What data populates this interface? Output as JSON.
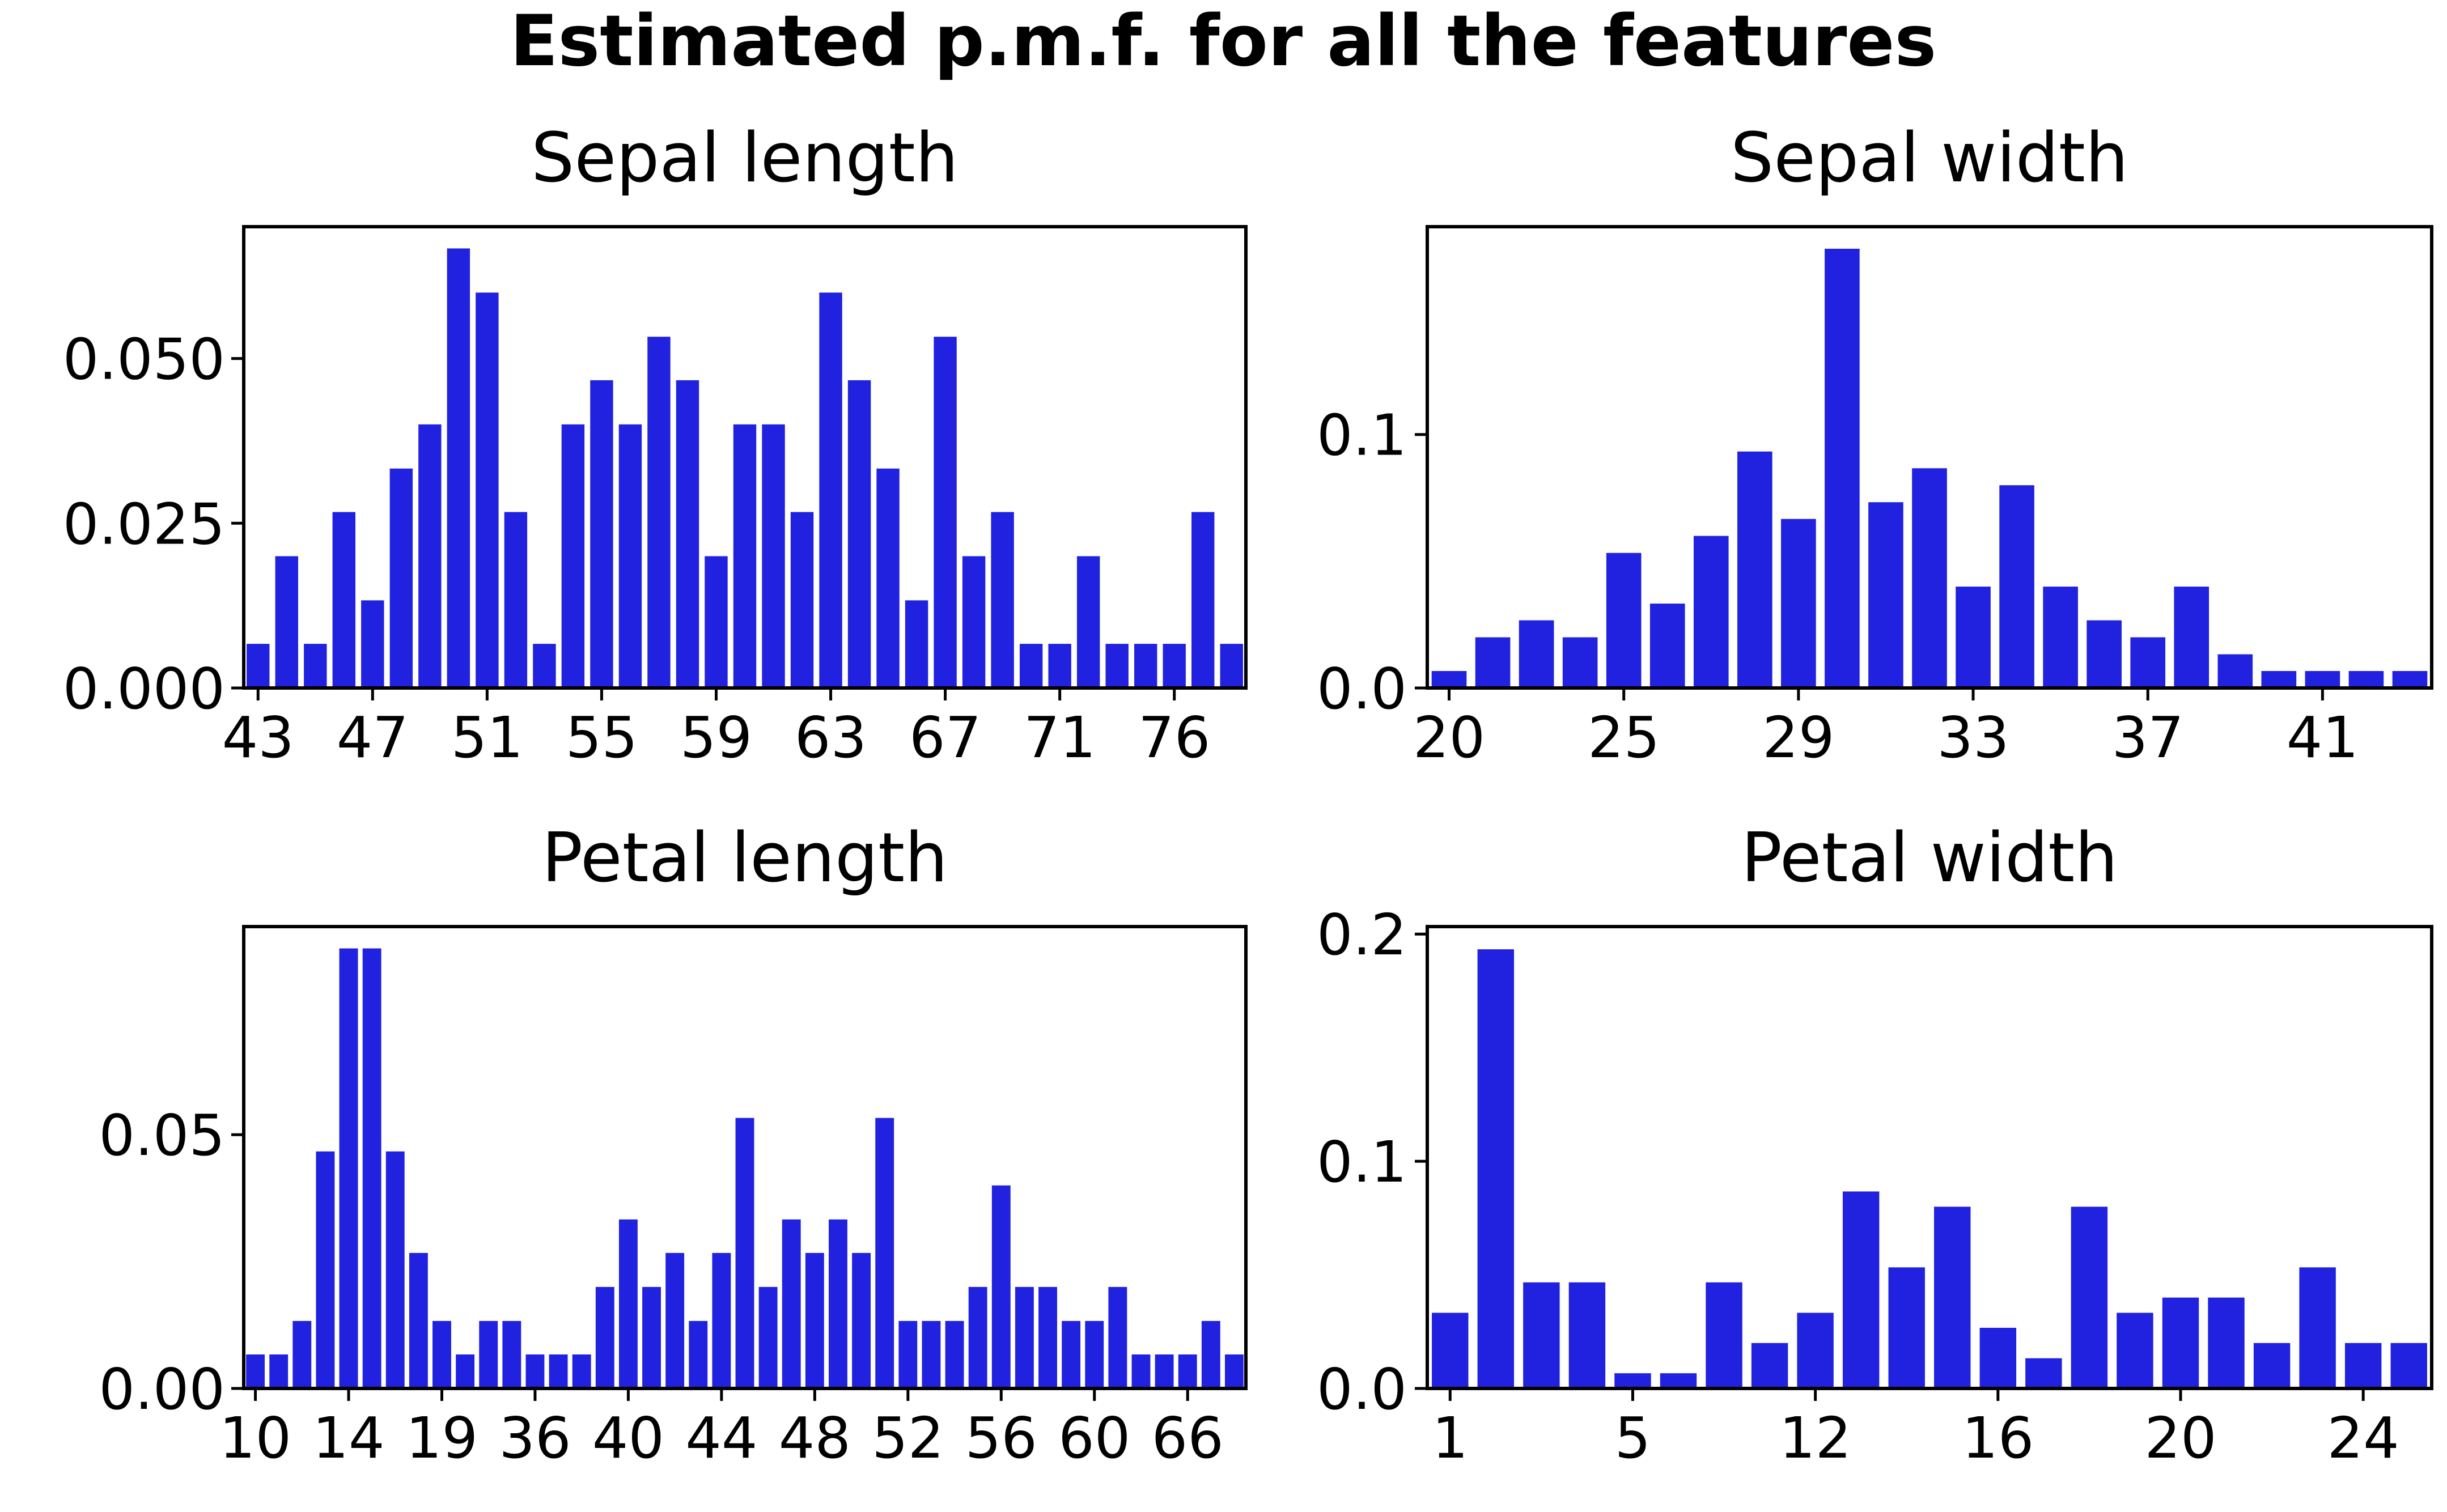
{
  "suptitle": "Estimated p.m.f. for all the features",
  "bar_color": "#2121e0",
  "chart_data": [
    {
      "type": "bar",
      "title": "Sepal length",
      "xlabel": "",
      "ylabel": "",
      "categories": [
        "43",
        "44",
        "45",
        "46",
        "47",
        "48",
        "49",
        "50",
        "51",
        "52",
        "53",
        "54",
        "55",
        "56",
        "57",
        "58",
        "59",
        "60",
        "61",
        "62",
        "63",
        "64",
        "65",
        "66",
        "67",
        "68",
        "69",
        "70",
        "71",
        "72",
        "73",
        "74",
        "76",
        "77",
        "79"
      ],
      "values": [
        0.0067,
        0.02,
        0.0067,
        0.0267,
        0.0133,
        0.0333,
        0.04,
        0.0667,
        0.06,
        0.0267,
        0.0067,
        0.04,
        0.0467,
        0.04,
        0.0533,
        0.0467,
        0.02,
        0.04,
        0.04,
        0.0267,
        0.06,
        0.0467,
        0.0333,
        0.0133,
        0.0533,
        0.02,
        0.0267,
        0.0067,
        0.0067,
        0.02,
        0.0067,
        0.0067,
        0.0067,
        0.0267,
        0.0067
      ],
      "xtick_labels": [
        "43",
        "47",
        "51",
        "55",
        "59",
        "63",
        "67",
        "71",
        "76"
      ],
      "yticks": [
        0,
        0.025,
        0.05
      ],
      "ytick_labels": [
        "0.000",
        "0.025",
        "0.050"
      ],
      "ylim": [
        0,
        0.07
      ],
      "grid": false,
      "legend": "none"
    },
    {
      "type": "bar",
      "title": "Sepal width",
      "xlabel": "",
      "ylabel": "",
      "categories": [
        "20",
        "22",
        "23",
        "24",
        "25",
        "26",
        "27",
        "28",
        "29",
        "30",
        "31",
        "32",
        "33",
        "34",
        "35",
        "36",
        "37",
        "38",
        "39",
        "40",
        "41",
        "42",
        "44"
      ],
      "values": [
        0.0067,
        0.02,
        0.0267,
        0.02,
        0.0533,
        0.0333,
        0.06,
        0.0933,
        0.0667,
        0.1733,
        0.0733,
        0.0867,
        0.04,
        0.08,
        0.04,
        0.0267,
        0.02,
        0.04,
        0.0133,
        0.0067,
        0.0067,
        0.0067,
        0.0067
      ],
      "xtick_labels": [
        "20",
        "25",
        "29",
        "33",
        "37",
        "41"
      ],
      "yticks": [
        0,
        0.1
      ],
      "ytick_labels": [
        "0.0",
        "0.1"
      ],
      "ylim": [
        0,
        0.182
      ],
      "grid": false,
      "legend": "none"
    },
    {
      "type": "bar",
      "title": "Petal length",
      "xlabel": "",
      "ylabel": "",
      "categories": [
        "10",
        "11",
        "12",
        "13",
        "14",
        "15",
        "16",
        "17",
        "19",
        "30",
        "33",
        "35",
        "36",
        "37",
        "38",
        "39",
        "40",
        "41",
        "42",
        "43",
        "44",
        "45",
        "46",
        "47",
        "48",
        "49",
        "50",
        "51",
        "52",
        "53",
        "54",
        "55",
        "56",
        "57",
        "58",
        "59",
        "60",
        "61",
        "63",
        "64",
        "66",
        "67",
        "69"
      ],
      "values": [
        0.0067,
        0.0067,
        0.0133,
        0.0467,
        0.0867,
        0.0867,
        0.0467,
        0.0267,
        0.0133,
        0.0067,
        0.0133,
        0.0133,
        0.0067,
        0.0067,
        0.0067,
        0.02,
        0.0333,
        0.02,
        0.0267,
        0.0133,
        0.0267,
        0.0533,
        0.02,
        0.0333,
        0.0267,
        0.0333,
        0.0267,
        0.0533,
        0.0133,
        0.0133,
        0.0133,
        0.02,
        0.04,
        0.02,
        0.02,
        0.0133,
        0.0133,
        0.02,
        0.0067,
        0.0067,
        0.0067,
        0.0133,
        0.0067
      ],
      "xtick_labels": [
        "10",
        "14",
        "19",
        "36",
        "40",
        "44",
        "48",
        "52",
        "56",
        "60",
        "66"
      ],
      "yticks": [
        0,
        0.05
      ],
      "ytick_labels": [
        "0.00",
        "0.05"
      ],
      "ylim": [
        0,
        0.091
      ],
      "grid": false,
      "legend": "none"
    },
    {
      "type": "bar",
      "title": "Petal width",
      "xlabel": "",
      "ylabel": "",
      "categories": [
        "1",
        "2",
        "3",
        "4",
        "5",
        "6",
        "10",
        "11",
        "12",
        "13",
        "14",
        "15",
        "16",
        "17",
        "18",
        "19",
        "20",
        "21",
        "22",
        "23",
        "24",
        "25"
      ],
      "values": [
        0.0333,
        0.1933,
        0.0467,
        0.0467,
        0.0067,
        0.0067,
        0.0467,
        0.02,
        0.0333,
        0.0867,
        0.0533,
        0.08,
        0.0267,
        0.0133,
        0.08,
        0.0333,
        0.04,
        0.04,
        0.02,
        0.0533,
        0.02,
        0.02
      ],
      "xtick_labels": [
        "1",
        "5",
        "12",
        "16",
        "20",
        "24"
      ],
      "yticks": [
        0,
        0.1,
        0.2
      ],
      "ytick_labels": [
        "0.0",
        "0.1",
        "0.2"
      ],
      "ylim": [
        0,
        0.2033
      ],
      "grid": false,
      "legend": "none"
    }
  ]
}
